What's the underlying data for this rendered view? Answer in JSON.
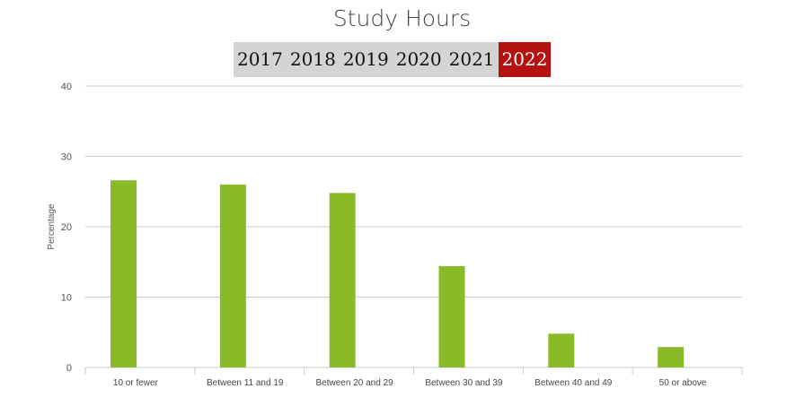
{
  "chart_data": {
    "type": "bar",
    "title": "Study Hours",
    "ylabel": "Percentage",
    "xlabel": "",
    "ylim": [
      0,
      40
    ],
    "yticks": [
      0,
      10,
      20,
      30,
      40
    ],
    "grid": true,
    "categories": [
      "10 or fewer",
      "Between 11 and 19",
      "Between 20 and 29",
      "Between 30 and 39",
      "Between 40 and 49",
      "50 or above"
    ],
    "values": [
      26.6,
      26.0,
      24.8,
      14.4,
      4.8,
      2.9
    ],
    "bar_color": "#8aba27"
  },
  "year_tabs": [
    "2017",
    "2018",
    "2019",
    "2020",
    "2021",
    "2022"
  ],
  "selected_year": "2022",
  "colors": {
    "active_tab": "#b5120f",
    "tab_bar": "#d4d4d4"
  }
}
